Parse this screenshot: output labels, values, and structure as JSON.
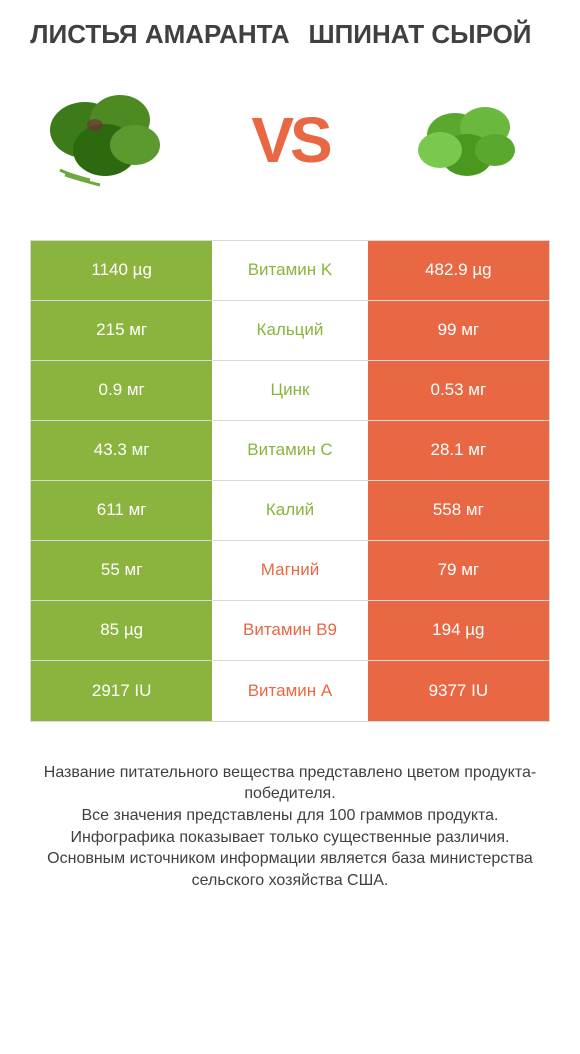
{
  "header": {
    "left_title": "ЛИСТЬЯ АМАРАНТА",
    "right_title": "ШПИНАТ СЫРОЙ",
    "vs": "VS"
  },
  "colors": {
    "left_bar": "#8bb43f",
    "right_bar": "#e96843",
    "nutrient_left_win": "#8bb43f",
    "nutrient_right_win": "#e96843",
    "border": "#d8d8d8",
    "text": "#404040",
    "background": "#ffffff"
  },
  "table": {
    "rows": [
      {
        "left": "1140 µg",
        "nutrient": "Витамин K",
        "right": "482.9 µg",
        "winner": "left"
      },
      {
        "left": "215 мг",
        "nutrient": "Кальций",
        "right": "99 мг",
        "winner": "left"
      },
      {
        "left": "0.9 мг",
        "nutrient": "Цинк",
        "right": "0.53 мг",
        "winner": "left"
      },
      {
        "left": "43.3 мг",
        "nutrient": "Витамин C",
        "right": "28.1 мг",
        "winner": "left"
      },
      {
        "left": "611 мг",
        "nutrient": "Калий",
        "right": "558 мг",
        "winner": "left"
      },
      {
        "left": "55 мг",
        "nutrient": "Магний",
        "right": "79 мг",
        "winner": "right"
      },
      {
        "left": "85 µg",
        "nutrient": "Витамин B9",
        "right": "194 µg",
        "winner": "right"
      },
      {
        "left": "2917 IU",
        "nutrient": "Витамин A",
        "right": "9377 IU",
        "winner": "right"
      }
    ]
  },
  "footer": {
    "line1": "Название питательного вещества представлено цветом продукта-победителя.",
    "line2": "Все значения представлены для 100 граммов продукта.",
    "line3": "Инфографика показывает только существенные различия.",
    "line4": "Основным источником информации является база министерства сельского хозяйства США."
  }
}
